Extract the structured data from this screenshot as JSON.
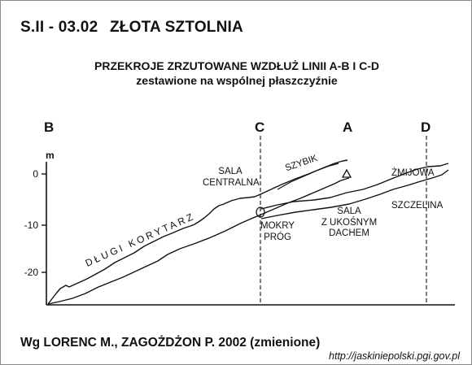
{
  "header": {
    "code": "S.II - 03.02",
    "name": "ZŁOTA SZTOLNIA"
  },
  "subtitle": {
    "line1": "PRZEKROJE ZRZUTOWANE WZDŁUŻ LINII A-B I C-D",
    "line2": "zestawione na wspólnej płaszczyźnie"
  },
  "points": {
    "B": "B",
    "C": "C",
    "A": "A",
    "D": "D"
  },
  "axis": {
    "unit": "m",
    "ticks": [
      "0",
      "-10",
      "-20"
    ],
    "tick_values": [
      0,
      -10,
      -20
    ]
  },
  "labels": {
    "sala_centralna": [
      "SALA",
      "CENTRALNA"
    ],
    "szybik": "SZYBIK",
    "zmijowa": "ŻMIJOWA",
    "szczelina": "SZCZELINA",
    "sala_ukosny": [
      "SALA",
      "Z UKOŚNYM",
      "DACHEM"
    ],
    "mokry_prog": [
      "MOKRY",
      "PRÓG"
    ],
    "dlugi_korytarz": "DŁUGI KORYTARZ"
  },
  "citation": "Wg LORENC M., ZAGOŻDŻON P. 2002  (zmienione)",
  "url": "http://jaskiniepolski.pgi.gov.pl"
}
